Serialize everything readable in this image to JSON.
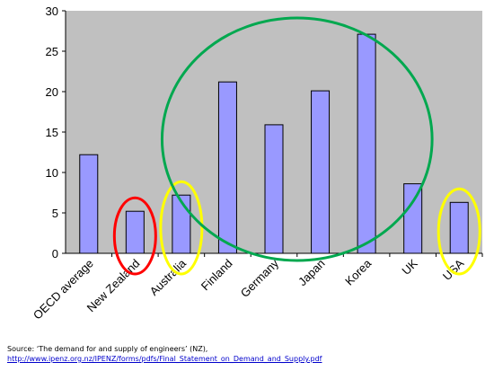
{
  "colors": {
    "plot_background": "#c0c0c0",
    "bar_fill": "#9999ff",
    "bar_stroke": "#000000",
    "red_circle": "#ff0000",
    "green_ellipse": "#00a84f",
    "yellow_ellipse": "#ffff00",
    "link": "#0000cc"
  },
  "chart_data": {
    "type": "bar",
    "categories": [
      "OECD average",
      "New Zealand",
      "Australia",
      "Finland",
      "Germany",
      "Japan",
      "Korea",
      "UK",
      "USA"
    ],
    "values": [
      12.2,
      5.2,
      7.2,
      21.2,
      15.9,
      20.1,
      27.1,
      8.6,
      6.3
    ],
    "ylim": [
      0,
      30
    ],
    "yticks": [
      0,
      5,
      10,
      15,
      20,
      25,
      30
    ],
    "grid": false,
    "legend": "none",
    "annotations": [
      {
        "shape": "ellipse",
        "color": "red",
        "encloses": [
          "New Zealand"
        ]
      },
      {
        "shape": "ellipse",
        "color": "yellow",
        "encloses": [
          "Australia"
        ]
      },
      {
        "shape": "ellipse",
        "color": "green",
        "encloses": [
          "Finland",
          "Germany",
          "Japan",
          "Korea"
        ]
      },
      {
        "shape": "ellipse",
        "color": "yellow",
        "encloses": [
          "USA"
        ]
      }
    ]
  },
  "source": {
    "prefix": "Source:  ‘The demand for and supply of engineers’ (NZ),",
    "url": "http://www.ipenz.org.nz/IPENZ/forms/pdfs/Final_Statement_on_Demand_and_Supply.pdf"
  }
}
